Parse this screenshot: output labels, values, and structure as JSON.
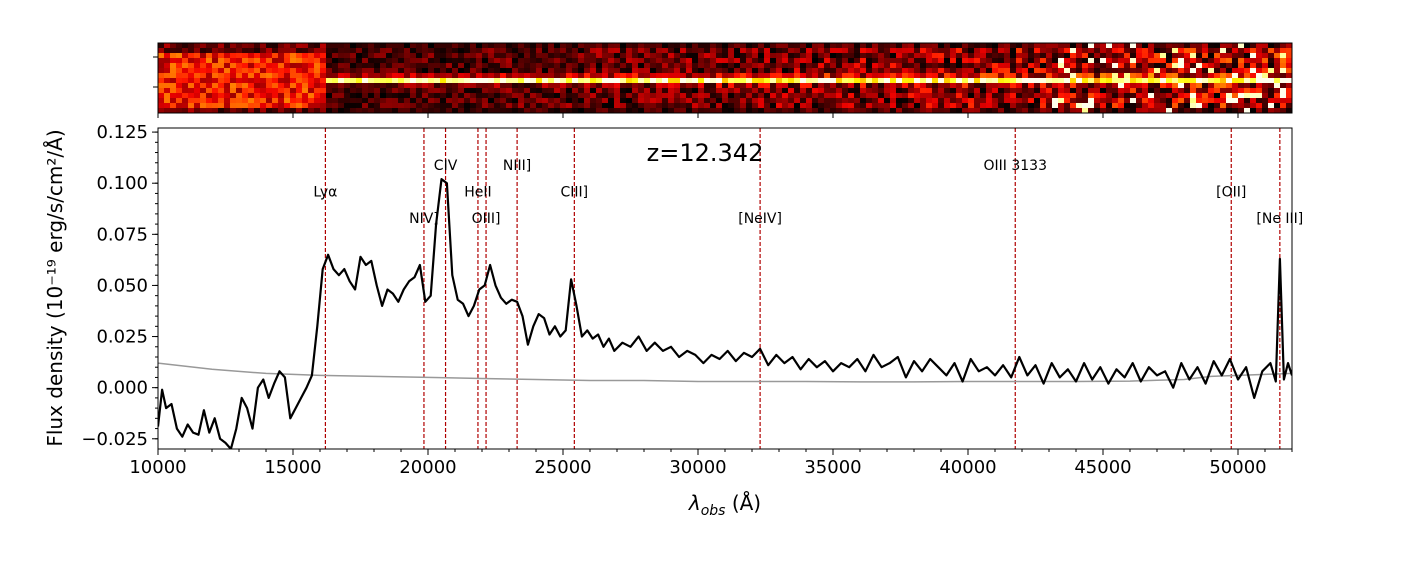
{
  "chart_data": {
    "type": "line",
    "annotation": "z=12.342",
    "xlabel": "λobs (Å)",
    "xlabel_main": "λ",
    "xlabel_sub": "obs",
    "xlabel_unit": " (Å)",
    "ylabel": "Flux density (10⁻¹⁹ erg/s/cm²/Å)",
    "xlim": [
      10000,
      52000
    ],
    "ylim": [
      -0.03,
      0.127
    ],
    "x_ticks": [
      10000,
      15000,
      20000,
      25000,
      30000,
      35000,
      40000,
      45000,
      50000
    ],
    "x_tick_labels": [
      "10000",
      "15000",
      "20000",
      "25000",
      "30000",
      "35000",
      "40000",
      "45000",
      "50000"
    ],
    "y_ticks": [
      -0.025,
      0,
      0.025,
      0.05,
      0.075,
      0.1,
      0.125
    ],
    "y_tick_labels": [
      "−0.025",
      "0.000",
      "0.025",
      "0.050",
      "0.075",
      "0.100",
      "0.125"
    ],
    "lines": [
      {
        "label": "Lyα",
        "x": 16200,
        "label_y": 0.096
      },
      {
        "label": "NIV]",
        "x": 19850,
        "label_y": 0.083
      },
      {
        "label": "CIV",
        "x": 20650,
        "label_y": 0.109
      },
      {
        "label": "HeII",
        "x": 21850,
        "label_y": 0.096
      },
      {
        "label": "OIII]",
        "x": 22150,
        "label_y": 0.083
      },
      {
        "label": "NIII]",
        "x": 23300,
        "label_y": 0.109
      },
      {
        "label": "CIII]",
        "x": 25420,
        "label_y": 0.096
      },
      {
        "label": "[NeIV]",
        "x": 32300,
        "label_y": 0.083
      },
      {
        "label": "OIII 3133",
        "x": 41750,
        "label_y": 0.109
      },
      {
        "label": "[OII]",
        "x": 49750,
        "label_y": 0.096
      },
      {
        "label": "[Ne III]",
        "x": 51550,
        "label_y": 0.083
      }
    ],
    "series": [
      {
        "role": "flux",
        "color": "#000000",
        "x": [
          10000,
          10150,
          10300,
          10500,
          10700,
          10900,
          11100,
          11300,
          11500,
          11700,
          11900,
          12100,
          12300,
          12500,
          12700,
          12900,
          13100,
          13300,
          13500,
          13700,
          13900,
          14100,
          14300,
          14500,
          14700,
          14900,
          15100,
          15300,
          15500,
          15700,
          15900,
          16100,
          16300,
          16500,
          16700,
          16900,
          17100,
          17300,
          17500,
          17700,
          17900,
          18100,
          18300,
          18500,
          18700,
          18900,
          19100,
          19300,
          19500,
          19700,
          19900,
          20100,
          20300,
          20500,
          20700,
          20900,
          21100,
          21300,
          21500,
          21700,
          21900,
          22100,
          22300,
          22500,
          22700,
          22900,
          23100,
          23300,
          23500,
          23700,
          23900,
          24100,
          24300,
          24500,
          24700,
          24900,
          25100,
          25300,
          25500,
          25700,
          25900,
          26100,
          26300,
          26500,
          26700,
          26900,
          27200,
          27500,
          27800,
          28100,
          28400,
          28700,
          29000,
          29300,
          29600,
          29900,
          30200,
          30500,
          30800,
          31100,
          31400,
          31700,
          32000,
          32300,
          32600,
          32900,
          33200,
          33500,
          33800,
          34100,
          34400,
          34700,
          35000,
          35300,
          35600,
          35900,
          36200,
          36500,
          36800,
          37100,
          37400,
          37700,
          38000,
          38300,
          38600,
          38900,
          39200,
          39500,
          39800,
          40100,
          40400,
          40700,
          41000,
          41300,
          41600,
          41900,
          42200,
          42500,
          42800,
          43100,
          43400,
          43700,
          44000,
          44300,
          44600,
          44900,
          45200,
          45500,
          45800,
          46100,
          46400,
          46700,
          47000,
          47300,
          47600,
          47900,
          48200,
          48500,
          48800,
          49100,
          49400,
          49700,
          50000,
          50300,
          50600,
          50900,
          51200,
          51400,
          51550,
          51700,
          51850,
          52000
        ],
        "y": [
          -0.019,
          -0.001,
          -0.01,
          -0.008,
          -0.02,
          -0.024,
          -0.018,
          -0.022,
          -0.023,
          -0.011,
          -0.022,
          -0.015,
          -0.025,
          -0.027,
          -0.03,
          -0.02,
          -0.005,
          -0.01,
          -0.02,
          0.0,
          0.004,
          -0.005,
          0.002,
          0.008,
          0.005,
          -0.015,
          -0.01,
          -0.005,
          0.0,
          0.006,
          0.03,
          0.058,
          0.065,
          0.058,
          0.055,
          0.058,
          0.052,
          0.048,
          0.064,
          0.06,
          0.062,
          0.05,
          0.04,
          0.048,
          0.046,
          0.042,
          0.048,
          0.052,
          0.054,
          0.06,
          0.042,
          0.045,
          0.08,
          0.102,
          0.1,
          0.055,
          0.043,
          0.041,
          0.035,
          0.04,
          0.048,
          0.05,
          0.06,
          0.05,
          0.044,
          0.041,
          0.043,
          0.042,
          0.035,
          0.021,
          0.03,
          0.036,
          0.034,
          0.026,
          0.03,
          0.025,
          0.028,
          0.053,
          0.04,
          0.025,
          0.028,
          0.024,
          0.026,
          0.02,
          0.024,
          0.018,
          0.022,
          0.02,
          0.025,
          0.018,
          0.022,
          0.018,
          0.02,
          0.015,
          0.018,
          0.016,
          0.012,
          0.016,
          0.014,
          0.018,
          0.013,
          0.017,
          0.015,
          0.019,
          0.011,
          0.016,
          0.012,
          0.015,
          0.009,
          0.014,
          0.01,
          0.013,
          0.008,
          0.012,
          0.01,
          0.014,
          0.008,
          0.016,
          0.01,
          0.012,
          0.015,
          0.005,
          0.013,
          0.008,
          0.014,
          0.01,
          0.006,
          0.012,
          0.003,
          0.014,
          0.008,
          0.01,
          0.006,
          0.011,
          0.005,
          0.015,
          0.006,
          0.011,
          0.002,
          0.012,
          0.005,
          0.009,
          0.003,
          0.012,
          0.004,
          0.01,
          0.002,
          0.009,
          0.005,
          0.012,
          0.003,
          0.01,
          0.006,
          0.008,
          0.0,
          0.012,
          0.004,
          0.01,
          0.002,
          0.013,
          0.006,
          0.014,
          0.004,
          0.01,
          -0.005,
          0.008,
          0.012,
          0.003,
          0.063,
          0.004,
          0.012,
          0.006
        ]
      },
      {
        "role": "error",
        "color": "#999999",
        "x": [
          10000,
          12000,
          14000,
          16000,
          18000,
          20000,
          22000,
          24000,
          26000,
          28000,
          30000,
          32000,
          34000,
          36000,
          38000,
          40000,
          42000,
          44000,
          46000,
          47000,
          48000,
          49000,
          50000,
          51000,
          52000
        ],
        "y": [
          0.012,
          0.009,
          0.007,
          0.006,
          0.0055,
          0.005,
          0.0045,
          0.004,
          0.0035,
          0.0035,
          0.003,
          0.003,
          0.003,
          0.0028,
          0.0028,
          0.003,
          0.003,
          0.003,
          0.0032,
          0.0036,
          0.004,
          0.0055,
          0.006,
          0.0065,
          0.007
        ]
      }
    ]
  }
}
